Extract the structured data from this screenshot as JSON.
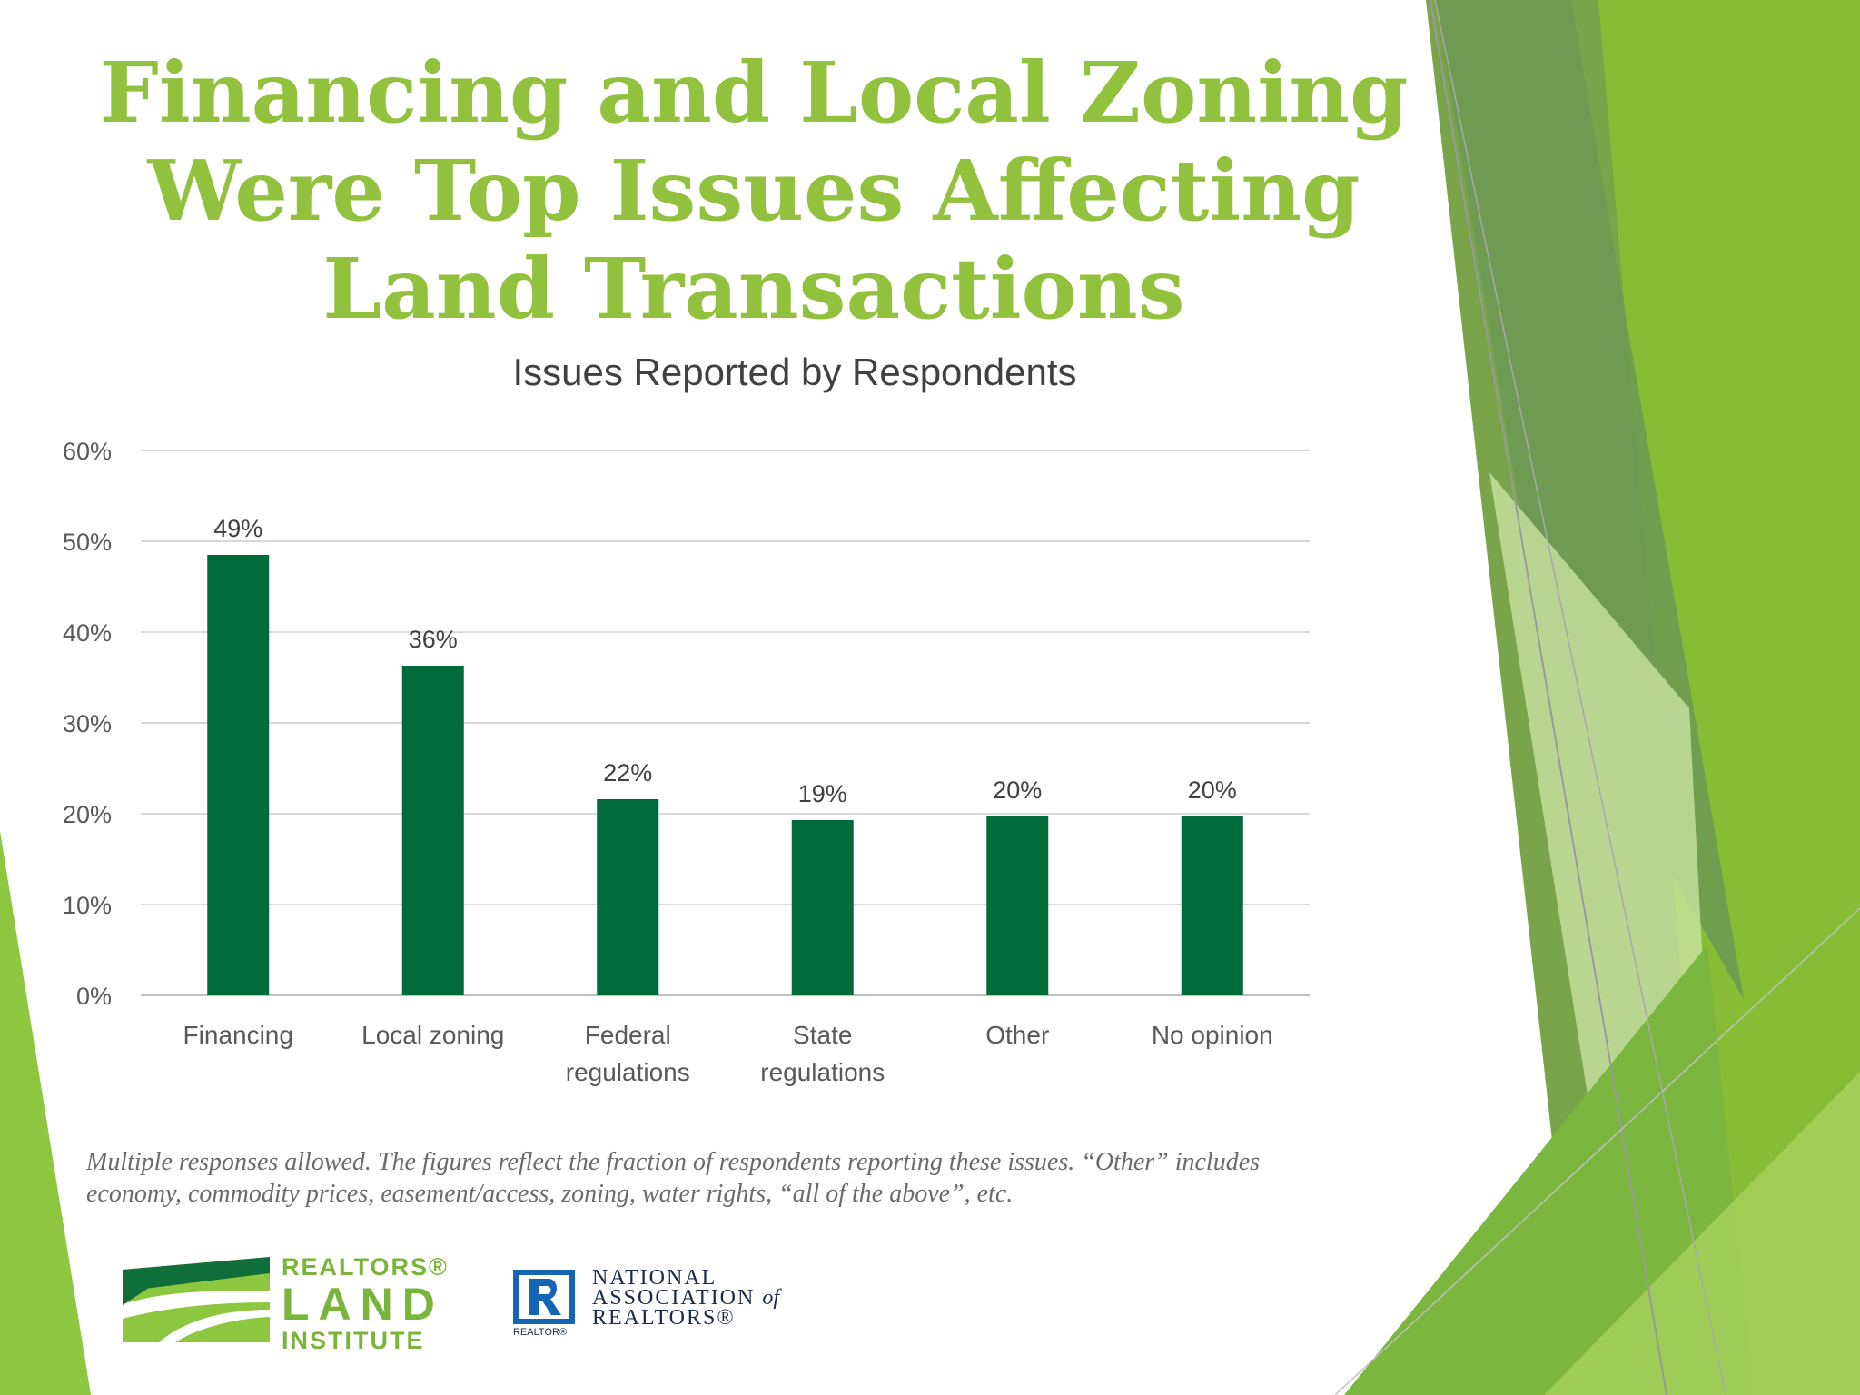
{
  "slide": {
    "title_lines": [
      "Financing and Local Zoning",
      "Were Top Issues Affecting",
      "Land Transactions"
    ],
    "footnote_lines": [
      "Multiple responses allowed. The figures reflect the fraction of respondents reporting these issues. “Other” includes",
      "economy, commodity prices, easement/access,  zoning, water rights, “all of the above”,  etc."
    ],
    "colors": {
      "title": "#92c13e",
      "bar": "#006b3a",
      "accent_green": "#8dc63f",
      "dark_green": "#5e9c3c"
    }
  },
  "logos": {
    "rli": {
      "line1": "REALTORS®",
      "line2": "LAND",
      "line3": "INSTITUTE"
    },
    "nar": {
      "line1": "NATIONAL",
      "line2": "ASSOCIATION",
      "of": "of",
      "line3": "REALTORS®",
      "mark_caption": "REALTOR®"
    }
  },
  "chart_data": {
    "type": "bar",
    "title": "Issues Reported by Respondents",
    "categories": [
      [
        "Financing"
      ],
      [
        "Local zoning"
      ],
      [
        "Federal",
        "regulations"
      ],
      [
        "State",
        "regulations"
      ],
      [
        "Other"
      ],
      [
        "No opinion"
      ]
    ],
    "values": [
      48.5,
      36.3,
      21.6,
      19.3,
      19.7,
      19.7
    ],
    "data_labels": [
      "49%",
      "36%",
      "22%",
      "19%",
      "20%",
      "20%"
    ],
    "yticks": [
      0,
      10,
      20,
      30,
      40,
      50,
      60
    ],
    "ytick_labels": [
      "0%",
      "10%",
      "20%",
      "30%",
      "40%",
      "50%",
      "60%"
    ],
    "ylim": [
      0,
      60
    ],
    "grid": true,
    "legend": "none"
  }
}
